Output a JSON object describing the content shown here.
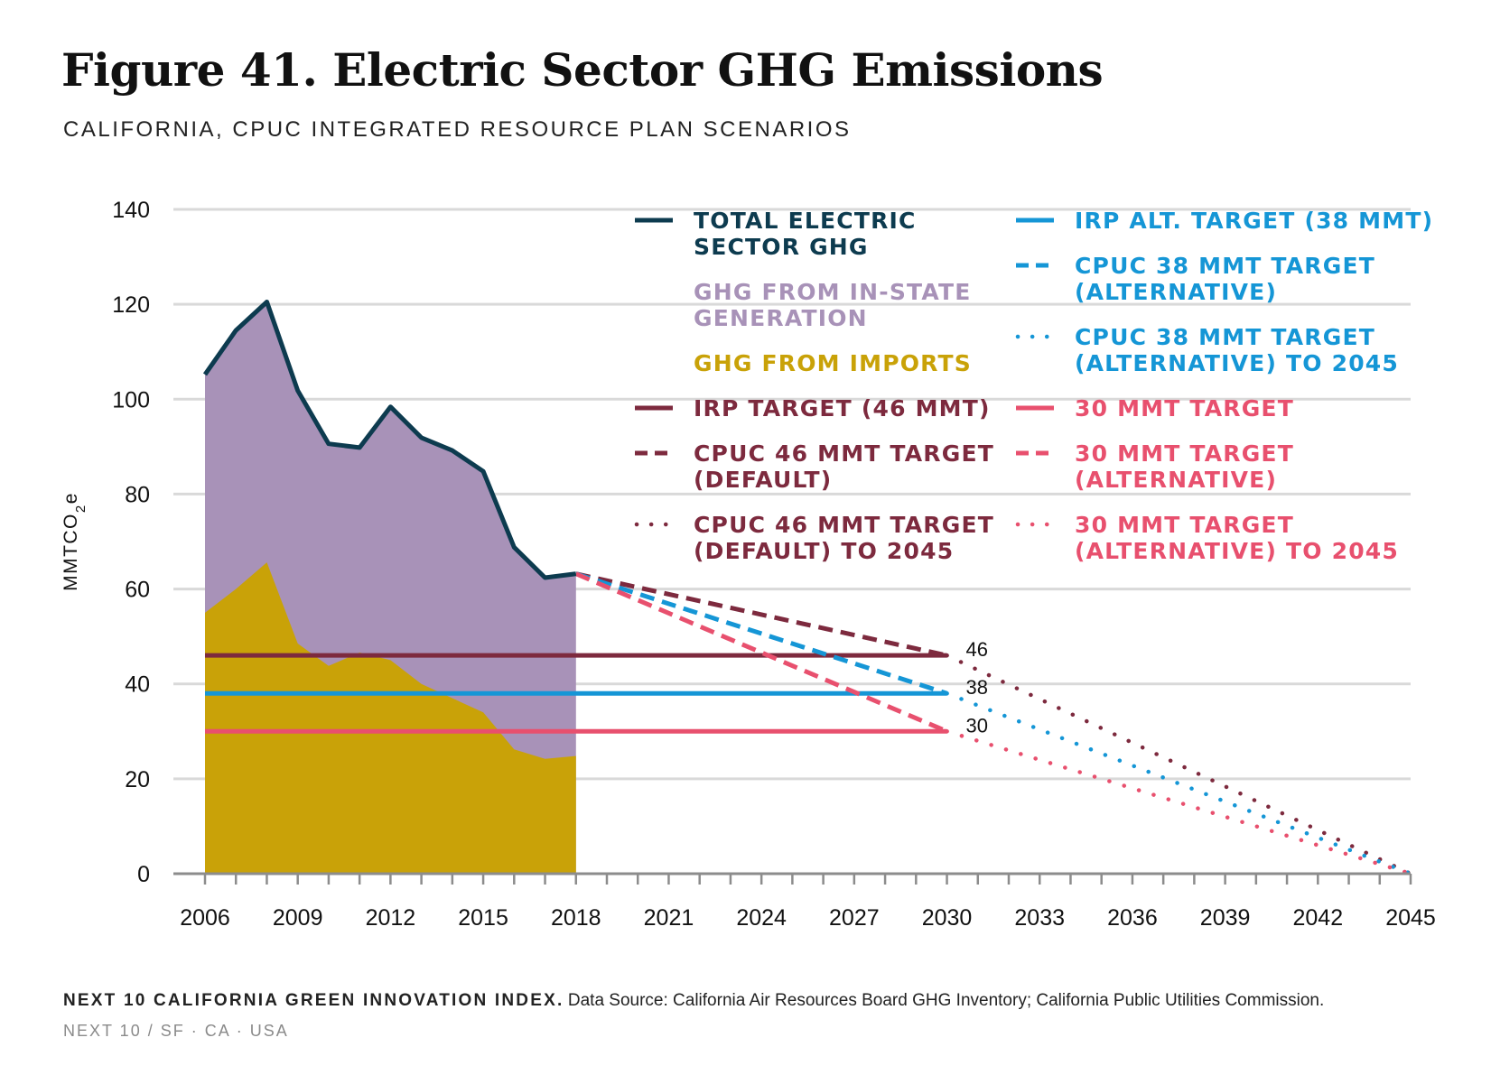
{
  "title": "Figure 41. Electric Sector GHG Emissions",
  "subtitle": "CALIFORNIA, CPUC INTEGRATED RESOURCE PLAN SCENARIOS",
  "footer": {
    "source_label": "NEXT 10 CALIFORNIA GREEN INNOVATION INDEX.",
    "source_text": "Data Source: California Air Resources Board GHG Inventory; California Public Utilities Commission.",
    "byline": "NEXT 10  /  SF · CA · USA"
  },
  "colors": {
    "total": "#0d3b4f",
    "instate": "#a892b8",
    "imports": "#c9a208",
    "target46": "#7d2a3e",
    "target38": "#1596d6",
    "target30": "#e8506e",
    "grid": "#d9d9d9",
    "axis": "#8c8c8c"
  },
  "chart_data": {
    "type": "area",
    "ylabel": "MMTCO2e",
    "ylim": [
      0,
      140
    ],
    "yticks": [
      "0",
      "20",
      "40",
      "60",
      "80",
      "100",
      "120",
      "140"
    ],
    "xlim": [
      2006,
      2045
    ],
    "xticks": [
      "2006",
      "2009",
      "2012",
      "2015",
      "2018",
      "2021",
      "2024",
      "2027",
      "2030",
      "2033",
      "2036",
      "2039",
      "2042",
      "2045"
    ],
    "grid": true,
    "legend_position": "top-right",
    "series": [
      {
        "name": "TOTAL ELECTRIC SECTOR GHG",
        "kind": "line",
        "color": "#0d3b4f",
        "x": [
          2006,
          2007,
          2008,
          2009,
          2010,
          2011,
          2012,
          2013,
          2014,
          2015,
          2016,
          2017,
          2018
        ],
        "values": [
          105.2,
          114.5,
          120.5,
          101.8,
          90.6,
          89.8,
          98.4,
          91.9,
          89.2,
          84.8,
          68.8,
          62.4,
          63.2
        ]
      },
      {
        "name": "GHG FROM IN-STATE GENERATION",
        "kind": "area",
        "color": "#a892b8",
        "x": [
          2006,
          2007,
          2008,
          2009,
          2010,
          2011,
          2012,
          2013,
          2014,
          2015,
          2016,
          2017,
          2018
        ],
        "values": [
          50.2,
          54.5,
          54.9,
          53.3,
          46.8,
          43.2,
          53.4,
          51.9,
          52.2,
          50.8,
          42.6,
          38.2,
          38.4
        ]
      },
      {
        "name": "GHG FROM IMPORTS",
        "kind": "area",
        "color": "#c9a208",
        "x": [
          2006,
          2007,
          2008,
          2009,
          2010,
          2011,
          2012,
          2013,
          2014,
          2015,
          2016,
          2017,
          2018
        ],
        "values": [
          55.0,
          60.0,
          65.6,
          48.5,
          43.8,
          46.6,
          45.0,
          40.0,
          37.0,
          34.0,
          26.2,
          24.2,
          24.8
        ]
      },
      {
        "name": "IRP TARGET (46 MMT)",
        "kind": "hline",
        "style": "solid",
        "color": "#7d2a3e",
        "x": [
          2006,
          2030
        ],
        "values": [
          46,
          46
        ]
      },
      {
        "name": "CPUC 46 MMT TARGET (DEFAULT)",
        "kind": "line",
        "style": "dashed",
        "color": "#7d2a3e",
        "x": [
          2018,
          2030
        ],
        "values": [
          63.2,
          46
        ]
      },
      {
        "name": "CPUC 46 MMT TARGET (DEFAULT) TO 2045",
        "kind": "line",
        "style": "dotted",
        "color": "#7d2a3e",
        "x": [
          2030,
          2045
        ],
        "values": [
          46,
          0
        ]
      },
      {
        "name": "IRP ALT. TARGET (38 MMT)",
        "kind": "hline",
        "style": "solid",
        "color": "#1596d6",
        "x": [
          2006,
          2030
        ],
        "values": [
          38,
          38
        ]
      },
      {
        "name": "CPUC 38 MMT TARGET (ALTERNATIVE)",
        "kind": "line",
        "style": "dashed",
        "color": "#1596d6",
        "x": [
          2018,
          2030
        ],
        "values": [
          63.2,
          38
        ]
      },
      {
        "name": "CPUC 38 MMT TARGET (ALTERNATIVE) TO 2045",
        "kind": "line",
        "style": "dotted",
        "color": "#1596d6",
        "x": [
          2030,
          2045
        ],
        "values": [
          38,
          0
        ]
      },
      {
        "name": "30 MMT TARGET",
        "kind": "hline",
        "style": "solid",
        "color": "#e8506e",
        "x": [
          2006,
          2030
        ],
        "values": [
          30,
          30
        ]
      },
      {
        "name": "30 MMT TARGET (ALTERNATIVE)",
        "kind": "line",
        "style": "dashed",
        "color": "#e8506e",
        "x": [
          2018,
          2030
        ],
        "values": [
          63.2,
          30
        ]
      },
      {
        "name": "30 MMT TARGET (ALTERNATIVE) TO 2045",
        "kind": "line",
        "style": "dotted",
        "color": "#e8506e",
        "x": [
          2030,
          2045
        ],
        "values": [
          30,
          0
        ]
      }
    ],
    "annotations": [
      {
        "text": "46",
        "x": 2030,
        "y": 46
      },
      {
        "text": "38",
        "x": 2030,
        "y": 38
      },
      {
        "text": "30",
        "x": 2030,
        "y": 30
      }
    ],
    "legend": [
      {
        "lines": [
          "TOTAL ELECTRIC",
          "SECTOR GHG"
        ],
        "swatch": "solid",
        "color": "#0d3b4f"
      },
      {
        "lines": [
          "GHG FROM IN-STATE",
          "GENERATION"
        ],
        "swatch": "none",
        "color": "#a892b8"
      },
      {
        "lines": [
          "GHG FROM IMPORTS"
        ],
        "swatch": "none",
        "color": "#c9a208"
      },
      {
        "lines": [
          "IRP TARGET (46 MMT)"
        ],
        "swatch": "solid",
        "color": "#7d2a3e"
      },
      {
        "lines": [
          "CPUC 46 MMT TARGET",
          "(DEFAULT)"
        ],
        "swatch": "dashed",
        "color": "#7d2a3e"
      },
      {
        "lines": [
          "CPUC 46 MMT TARGET",
          "(DEFAULT) TO 2045"
        ],
        "swatch": "dotted",
        "color": "#7d2a3e"
      },
      {
        "lines": [
          "IRP ALT. TARGET (38 MMT)"
        ],
        "swatch": "solid",
        "color": "#1596d6"
      },
      {
        "lines": [
          "CPUC 38 MMT TARGET",
          "(ALTERNATIVE)"
        ],
        "swatch": "dashed",
        "color": "#1596d6"
      },
      {
        "lines": [
          "CPUC 38 MMT TARGET",
          "(ALTERNATIVE) TO 2045"
        ],
        "swatch": "dotted",
        "color": "#1596d6"
      },
      {
        "lines": [
          "30 MMT TARGET"
        ],
        "swatch": "solid",
        "color": "#e8506e"
      },
      {
        "lines": [
          "30 MMT TARGET",
          "(ALTERNATIVE)"
        ],
        "swatch": "dashed",
        "color": "#e8506e"
      },
      {
        "lines": [
          "30 MMT TARGET",
          "(ALTERNATIVE) TO 2045"
        ],
        "swatch": "dotted",
        "color": "#e8506e"
      }
    ]
  }
}
